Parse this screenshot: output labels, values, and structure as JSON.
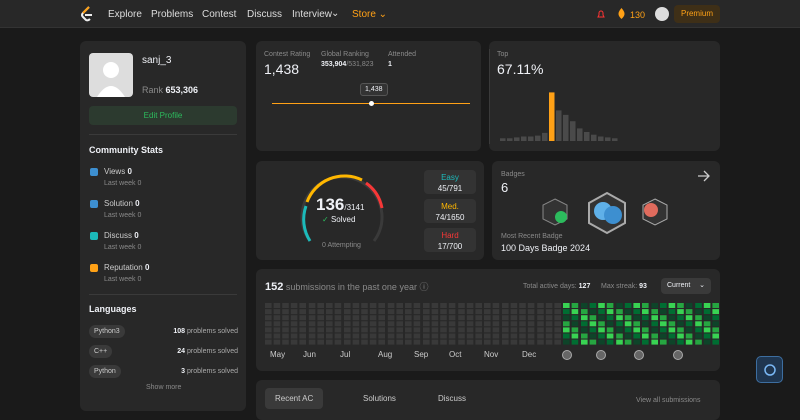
{
  "nav": {
    "items": [
      "Explore",
      "Problems",
      "Contest",
      "Discuss",
      "Interview"
    ],
    "store": "Store",
    "streak": "130",
    "premium": "Premium"
  },
  "profile": {
    "username": "sanj_3",
    "rank_label": "Rank",
    "rank": "653,306",
    "edit": "Edit Profile"
  },
  "community": {
    "title": "Community Stats",
    "stats": [
      {
        "label": "Views",
        "value": "0",
        "sub": "Last week",
        "sub_value": "0"
      },
      {
        "label": "Solution",
        "value": "0",
        "sub": "Last week",
        "sub_value": "0"
      },
      {
        "label": "Discuss",
        "value": "0",
        "sub": "Last week",
        "sub_value": "0"
      },
      {
        "label": "Reputation",
        "value": "0",
        "sub": "Last week",
        "sub_value": "0"
      }
    ]
  },
  "languages": {
    "title": "Languages",
    "items": [
      {
        "name": "Python3",
        "count": "108",
        "suffix": "problems solved"
      },
      {
        "name": "C++",
        "count": "24",
        "suffix": "problems solved"
      },
      {
        "name": "Python",
        "count": "3",
        "suffix": "problems solved"
      }
    ],
    "more": "Show more"
  },
  "contest": {
    "rating_label": "Contest Rating",
    "rating": "1,438",
    "ranking_label": "Global Ranking",
    "ranking": "353,904",
    "ranking_total": "/531,823",
    "attended_label": "Attended",
    "attended": "1",
    "tooltip": "1,438"
  },
  "top": {
    "label": "Top",
    "value": "67.11%",
    "histogram": {
      "values": [
        3,
        3,
        4,
        5,
        5,
        6,
        9,
        54,
        34,
        29,
        22,
        14,
        10,
        7,
        5,
        4,
        3
      ],
      "color": "#4a4a4a",
      "highlight_color": "#ffa116",
      "highlight": 7
    }
  },
  "solved": {
    "count": "136",
    "total": "/3141",
    "label": "Solved",
    "attempting": "0 Attempting",
    "difficulties": [
      {
        "label": "Easy",
        "value": "45/791",
        "color": "#1cbaba"
      },
      {
        "label": "Med.",
        "value": "74/1650",
        "color": "#ffb700"
      },
      {
        "label": "Hard",
        "value": "17/700",
        "color": "#f63737"
      }
    ]
  },
  "badges": {
    "label": "Badges",
    "count": "6",
    "recent_label": "Most Recent Badge",
    "recent": "100 Days Badge 2024"
  },
  "submissions": {
    "count": "152",
    "text": "submissions in the past one year",
    "active_label": "Total active days:",
    "active": "127",
    "streak_label": "Max streak:",
    "streak": "93",
    "select": "Current",
    "months": [
      "May",
      "Jun",
      "Jul",
      "Aug",
      "Sep",
      "Oct",
      "Nov",
      "Dec"
    ]
  },
  "tabs": [
    "Recent AC",
    "Solutions",
    "Discuss"
  ],
  "view_all": "View all submissions"
}
